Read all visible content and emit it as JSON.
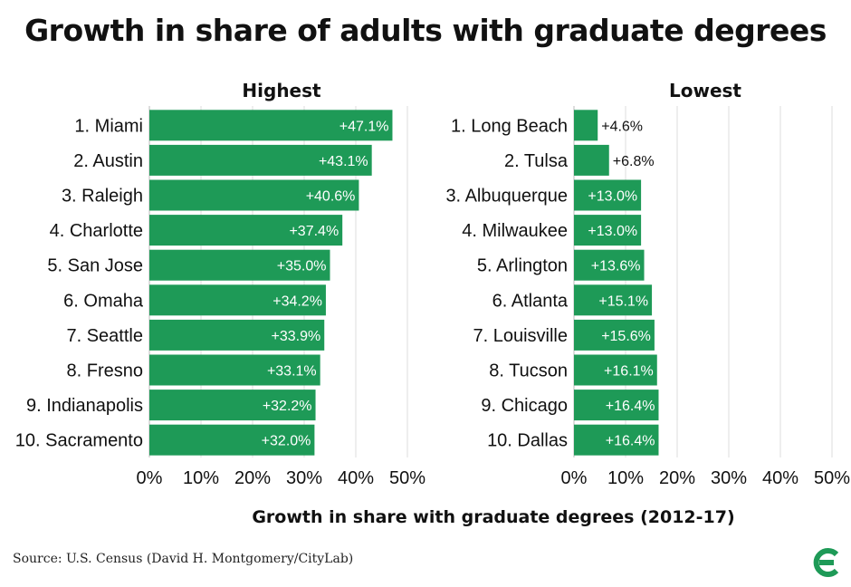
{
  "title": "Growth in share of adults with graduate degrees",
  "source": "Source: U.S. Census (David H. Montgomery/CityLab)",
  "colors": {
    "bar": "#1e9a57",
    "grid": "#dddddd",
    "label_inside": "#ffffff",
    "label_outside": "#111111"
  },
  "logo_icon": "citylab-c-logo-icon",
  "chart_data": [
    {
      "type": "bar",
      "orientation": "horizontal",
      "title": "Highest",
      "categories": [
        "1. Miami",
        "2. Austin",
        "3. Raleigh",
        "4. Charlotte",
        "5. San Jose",
        "6. Omaha",
        "7. Seattle",
        "8. Fresno",
        "9. Indianapolis",
        "10. Sacramento"
      ],
      "values": [
        47.1,
        43.1,
        40.6,
        37.4,
        35.0,
        34.2,
        33.9,
        33.1,
        32.2,
        32.0
      ],
      "value_labels": [
        "+47.1%",
        "+43.1%",
        "+40.6%",
        "+37.4%",
        "+35.0%",
        "+34.2%",
        "+33.9%",
        "+33.1%",
        "+32.2%",
        "+32.0%"
      ],
      "xlim": [
        0,
        50
      ],
      "xticks": [
        "0%",
        "10%",
        "20%",
        "30%",
        "40%",
        "50%"
      ],
      "grid": true
    },
    {
      "type": "bar",
      "orientation": "horizontal",
      "title": "Lowest",
      "categories": [
        "1. Long Beach",
        "2. Tulsa",
        "3. Albuquerque",
        "4. Milwaukee",
        "5. Arlington",
        "6. Atlanta",
        "7. Louisville",
        "8. Tucson",
        "9. Chicago",
        "10. Dallas"
      ],
      "values": [
        4.6,
        6.8,
        13.0,
        13.0,
        13.6,
        15.1,
        15.6,
        16.1,
        16.4,
        16.4
      ],
      "value_labels": [
        "+4.6%",
        "+6.8%",
        "+13.0%",
        "+13.0%",
        "+13.6%",
        "+15.1%",
        "+15.6%",
        "+16.1%",
        "+16.4%",
        "+16.4%"
      ],
      "xlim": [
        0,
        50
      ],
      "xticks": [
        "0%",
        "10%",
        "20%",
        "30%",
        "40%",
        "50%"
      ],
      "grid": true
    }
  ],
  "xlabel": "Growth in share with graduate degrees (2012-17)"
}
